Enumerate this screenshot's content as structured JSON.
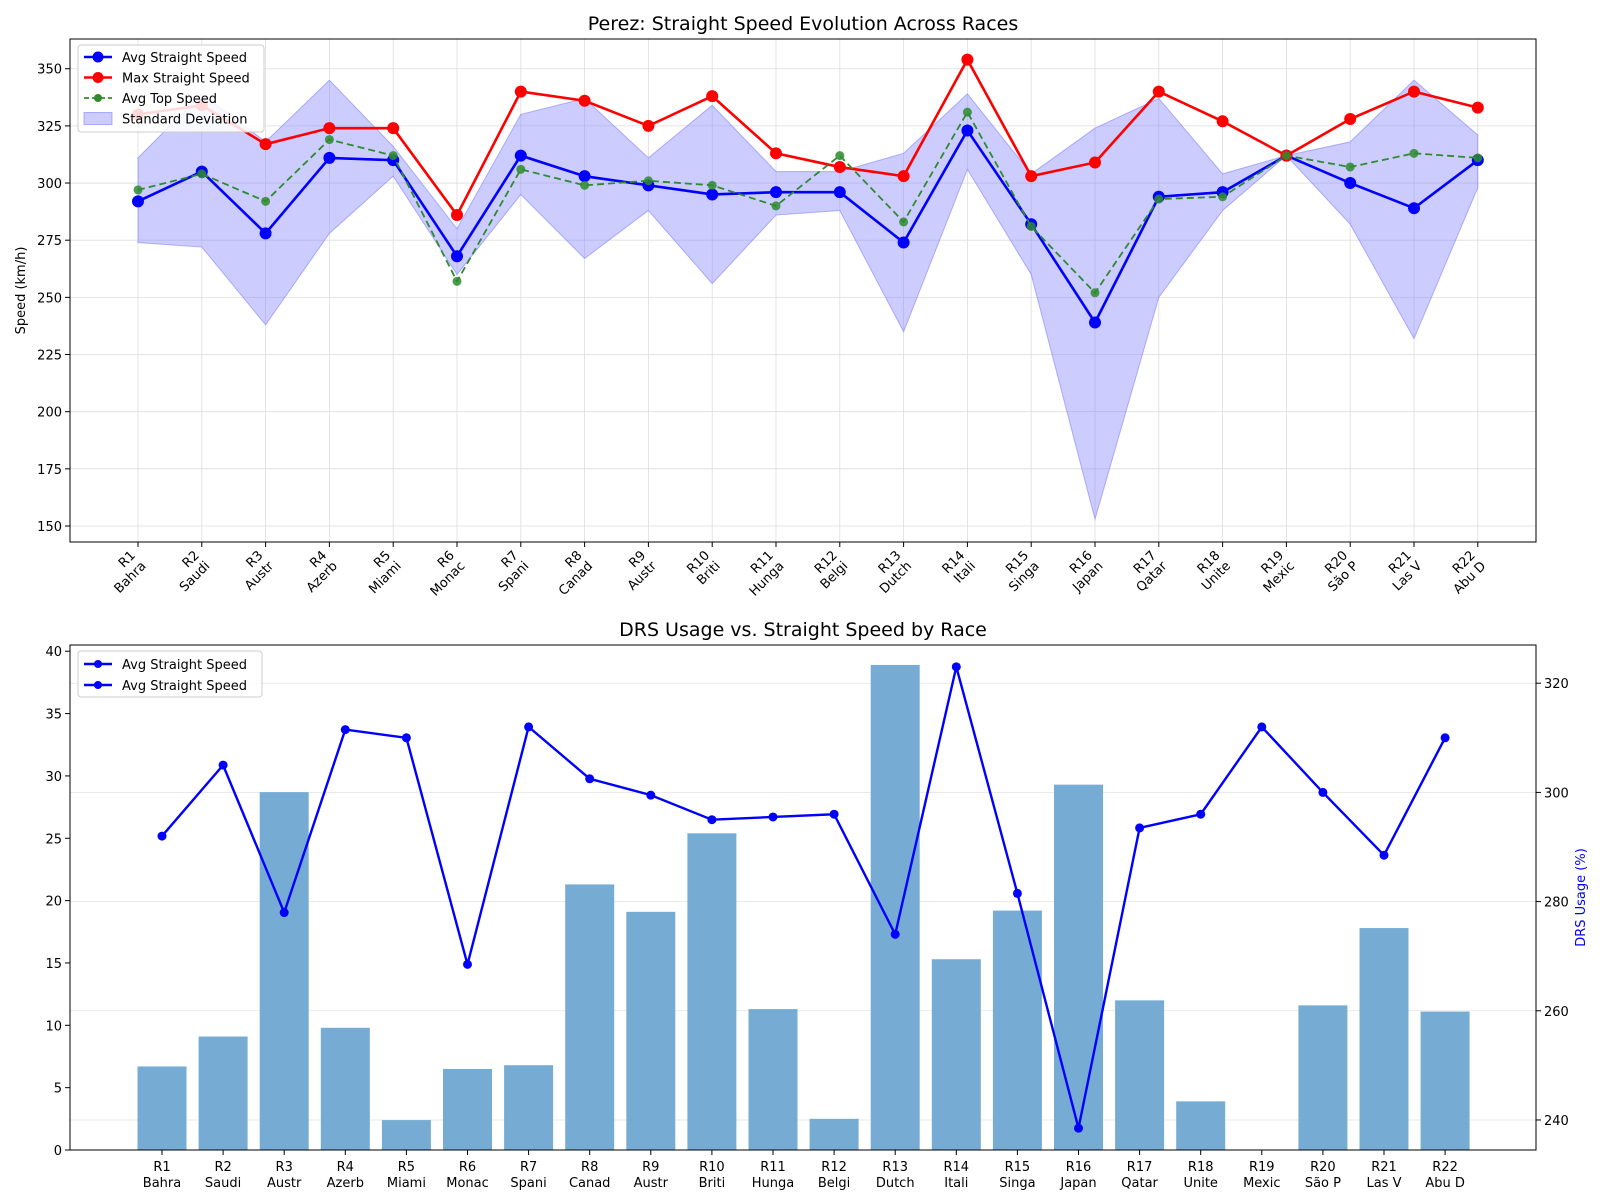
{
  "chart_data": [
    {
      "type": "line",
      "title": "Perez: Straight Speed Evolution Across Races",
      "xlabel": "",
      "ylabel": "Speed (km/h)",
      "ylim": [
        143,
        363
      ],
      "yticks": [
        150,
        175,
        200,
        225,
        250,
        275,
        300,
        325,
        350
      ],
      "grid": true,
      "legend_position": "top-left",
      "categories": [
        "R1\nBahra",
        "R2\nSaudi",
        "R3\nAustr",
        "R4\nAzerb",
        "R5\nMiami",
        "R6\nMonac",
        "R7\nSpani",
        "R8\nCanad",
        "R9\nAustr",
        "R10\nBriti",
        "R11\nHunga",
        "R12\nBelgi",
        "R13\nDutch",
        "R14\nItali",
        "R15\nSinga",
        "R16\nJapan",
        "R17\nQatar",
        "R18\nUnite",
        "R19\nMexic",
        "R20\nSão P",
        "R21\nLas V",
        "R22\nAbu D"
      ],
      "series": [
        {
          "name": "Avg Straight Speed",
          "color": "#0000ff",
          "style": "solid",
          "marker": "large",
          "values": [
            292,
            305,
            278,
            311,
            310,
            268,
            312,
            303,
            299,
            295,
            296,
            296,
            274,
            323,
            282,
            239,
            294,
            296,
            312,
            300,
            289,
            310
          ]
        },
        {
          "name": "Max Straight Speed",
          "color": "#ff0000",
          "style": "solid",
          "marker": "large",
          "values": [
            330,
            334,
            317,
            324,
            324,
            286,
            340,
            336,
            325,
            338,
            313,
            307,
            303,
            354,
            303,
            309,
            340,
            327,
            312,
            328,
            340,
            333
          ]
        },
        {
          "name": "Avg Top Speed",
          "color": "#2e8b2e",
          "style": "dashed",
          "marker": "small",
          "values": [
            297,
            304,
            292,
            319,
            312,
            257,
            306,
            299,
            301,
            299,
            290,
            312,
            283,
            331,
            281,
            252,
            293,
            294,
            312,
            307,
            313,
            311
          ]
        }
      ],
      "band": {
        "name": "Standard Deviation",
        "color": "#8080ff",
        "lower": [
          274,
          272,
          238,
          278,
          303,
          260,
          295,
          267,
          288,
          256,
          286,
          288,
          235,
          306,
          260,
          153,
          250,
          288,
          312,
          282,
          232,
          298
        ],
        "upper": [
          311,
          339,
          318,
          345,
          316,
          280,
          330,
          337,
          311,
          334,
          305,
          305,
          313,
          339,
          304,
          324,
          337,
          304,
          312,
          318,
          345,
          321
        ]
      }
    },
    {
      "type": "bar",
      "title": "DRS Usage vs. Straight Speed by Race",
      "xlabel": "",
      "ylabel_right": "DRS Usage (%)",
      "ylim": [
        0,
        40.5
      ],
      "yticks": [
        0,
        5,
        10,
        15,
        20,
        25,
        30,
        35,
        40
      ],
      "y2lim": [
        234.5,
        327
      ],
      "y2ticks": [
        240,
        260,
        280,
        300,
        320
      ],
      "grid": true,
      "legend_position": "top-left",
      "legend_entries": [
        "Avg Straight Speed",
        "Avg Straight Speed"
      ],
      "categories": [
        "R1\nBahra",
        "R2\nSaudi",
        "R3\nAustr",
        "R4\nAzerb",
        "R5\nMiami",
        "R6\nMonac",
        "R7\nSpani",
        "R8\nCanad",
        "R9\nAustr",
        "R10\nBriti",
        "R11\nHunga",
        "R12\nBelgi",
        "R13\nDutch",
        "R14\nItali",
        "R15\nSinga",
        "R16\nJapan",
        "R17\nQatar",
        "R18\nUnite",
        "R19\nMexic",
        "R20\nSão P",
        "R21\nLas V",
        "R22\nAbu D"
      ],
      "bars": {
        "color": "#76acd3",
        "values": [
          6.7,
          9.1,
          28.7,
          9.8,
          2.4,
          6.5,
          6.8,
          21.3,
          19.1,
          25.4,
          11.3,
          2.5,
          38.9,
          15.3,
          19.2,
          29.3,
          12.0,
          3.9,
          0,
          11.6,
          17.8,
          11.1
        ]
      },
      "line": {
        "name": "Avg Straight Speed",
        "color": "#0000ff",
        "values": [
          292,
          305,
          278,
          311.5,
          310,
          268.5,
          312,
          302.5,
          299.5,
          295,
          295.5,
          296,
          274,
          323,
          281.5,
          238.5,
          293.5,
          296,
          312,
          300,
          288.5,
          310
        ]
      }
    }
  ]
}
